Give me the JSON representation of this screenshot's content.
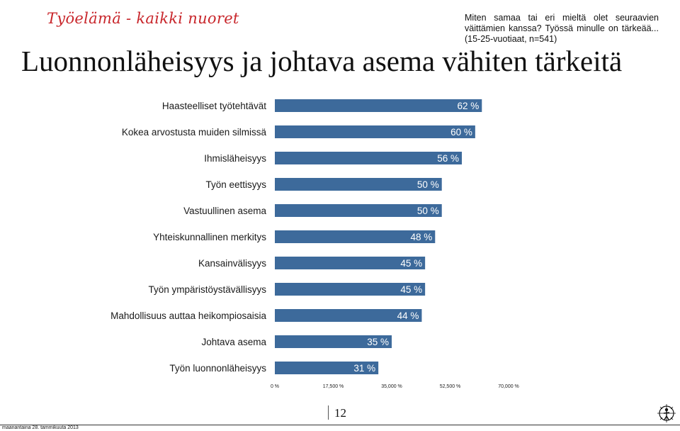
{
  "header": {
    "brand": "Työelämä - kaikki nuoret",
    "question": "Miten samaa tai eri mieltä olet seuraavien väittämien kanssa? Työssä minulle on tärkeää...(15-25-vuotiaat, n=541)",
    "title": "Luonnonläheisyys ja johtava asema vähiten tärkeitä"
  },
  "chart_data": {
    "type": "bar",
    "orientation": "horizontal",
    "categories": [
      "Haasteelliset työtehtävät",
      "Kokea arvostusta muiden silmissä",
      "Ihmisläheisyys",
      "Työn eettisyys",
      "Vastuullinen asema",
      "Yhteiskunnallinen merkitys",
      "Kansainvälisyys",
      "Työn ympäristöystävällisyys",
      "Mahdollisuus auttaa heikompiosaisia",
      "Johtava asema",
      "Työn luonnonläheisyys"
    ],
    "values": [
      62,
      60,
      56,
      50,
      50,
      48,
      45,
      45,
      44,
      35,
      31
    ],
    "value_labels": [
      "62 %",
      "60 %",
      "56 %",
      "50 %",
      "50 %",
      "48 %",
      "45 %",
      "45 %",
      "44 %",
      "35 %",
      "31 %"
    ],
    "xticks": [
      "0 %",
      "17,500 %",
      "35,000 %",
      "52,500 %",
      "70,000 %"
    ],
    "xlim": [
      0,
      70
    ],
    "grid": false,
    "bar_color": "#3d6a9b"
  },
  "footer": {
    "page_number": "12",
    "date": "maanantaina 28. tammikuuta 2013"
  },
  "logo_icon": "compass-figure-icon"
}
